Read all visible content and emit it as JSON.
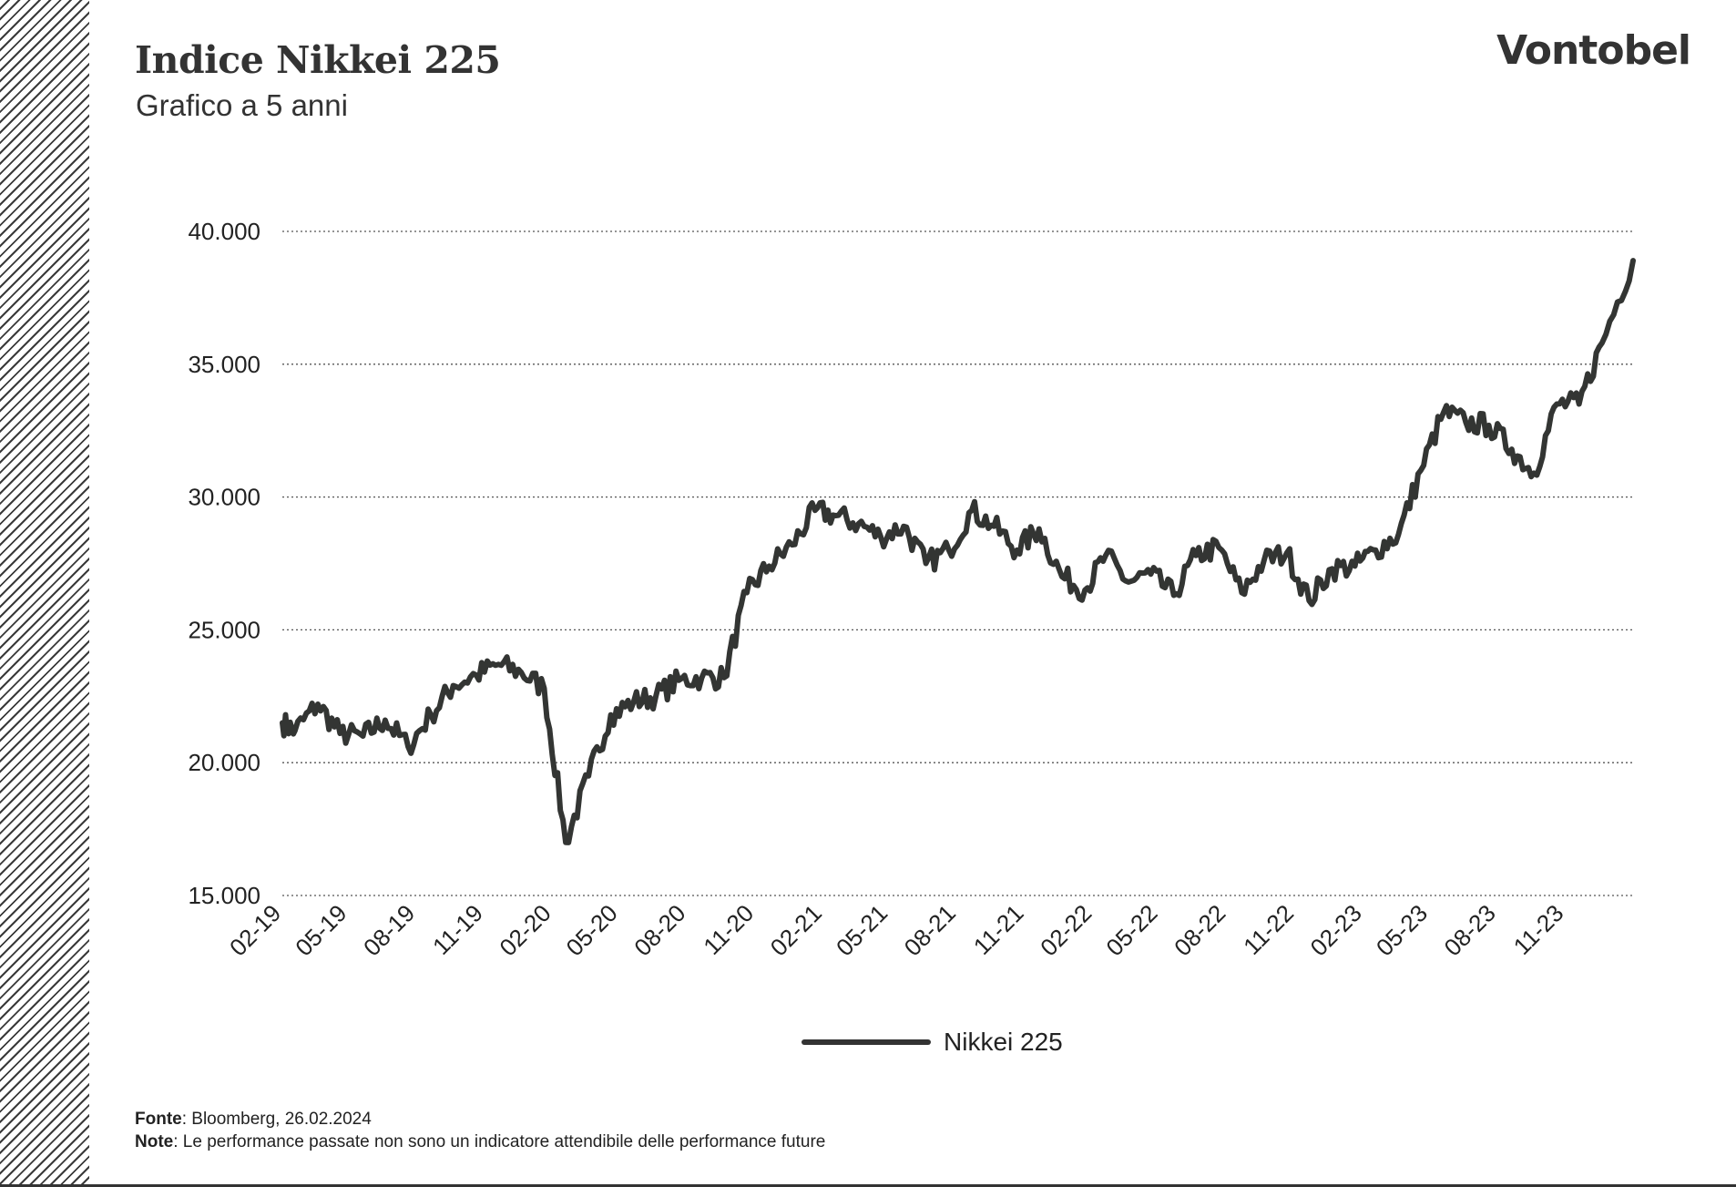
{
  "header": {
    "title": "Indice Nikkei 225",
    "subtitle": "Grafico a 5 anni",
    "brand": "Vontobel"
  },
  "footer": {
    "source_label": "Fonte",
    "source_text": ": Bloomberg, 26.02.2024",
    "note_label": "Note",
    "note_text": ": Le performance passate non sono un indicatore attendibile delle performance future"
  },
  "colors": {
    "line": "#333533",
    "grid": "#555555",
    "text": "#222222"
  },
  "chart_data": {
    "type": "line",
    "title": "Indice Nikkei 225",
    "subtitle": "Grafico a 5 anni",
    "xlabel": "",
    "ylabel": "",
    "ylim": [
      15000,
      40000
    ],
    "yticks": [
      40000,
      35000,
      30000,
      25000,
      20000,
      15000
    ],
    "ytick_labels": [
      "40.000",
      "35.000",
      "30.000",
      "25.000",
      "20.000",
      "15.000"
    ],
    "xlim": [
      "2019-02-26",
      "2024-02-26"
    ],
    "xtick_labels": [
      "02-19",
      "05-19",
      "08-19",
      "11-19",
      "02-20",
      "05-20",
      "08-20",
      "11-20",
      "02-21",
      "05-21",
      "08-21",
      "11-21",
      "02-22",
      "05-22",
      "08-22",
      "11-22",
      "02-23",
      "05-23",
      "08-23",
      "11-23"
    ],
    "grid": "horizontal dotted",
    "legend": "bottom-center",
    "series": [
      {
        "name": "Nikkei 225",
        "x": [
          "2019-02",
          "2019-03",
          "2019-04",
          "2019-05",
          "2019-06",
          "2019-07",
          "2019-08",
          "2019-09",
          "2019-10",
          "2019-11",
          "2019-12",
          "2020-01",
          "2020-02",
          "2020-03",
          "2020-04",
          "2020-05",
          "2020-06",
          "2020-07",
          "2020-08",
          "2020-09",
          "2020-10",
          "2020-11",
          "2020-12",
          "2021-01",
          "2021-02",
          "2021-03",
          "2021-04",
          "2021-05",
          "2021-06",
          "2021-07",
          "2021-08",
          "2021-09",
          "2021-10",
          "2021-11",
          "2021-12",
          "2022-01",
          "2022-02",
          "2022-03",
          "2022-04",
          "2022-05",
          "2022-06",
          "2022-07",
          "2022-08",
          "2022-09",
          "2022-10",
          "2022-11",
          "2022-12",
          "2023-01",
          "2023-02",
          "2023-03",
          "2023-04",
          "2023-05",
          "2023-06",
          "2023-07",
          "2023-08",
          "2023-09",
          "2023-10",
          "2023-11",
          "2023-12",
          "2024-01",
          "2024-02"
        ],
        "values": [
          21500,
          21200,
          22200,
          21100,
          21000,
          21600,
          20600,
          21800,
          22900,
          23300,
          23700,
          23400,
          22800,
          17000,
          19500,
          21800,
          22300,
          22500,
          23100,
          23200,
          23200,
          26400,
          27400,
          28200,
          29500,
          29300,
          29000,
          28500,
          28900,
          27500,
          28000,
          29500,
          28900,
          28000,
          28800,
          27000,
          26500,
          27800,
          26800,
          27100,
          26300,
          27800,
          28100,
          26400,
          27600,
          27900,
          26100,
          27300,
          27400,
          28000,
          28600,
          31000,
          33200,
          32800,
          32700,
          31800,
          30900,
          33500,
          33500,
          35800,
          38900
        ]
      }
    ]
  }
}
